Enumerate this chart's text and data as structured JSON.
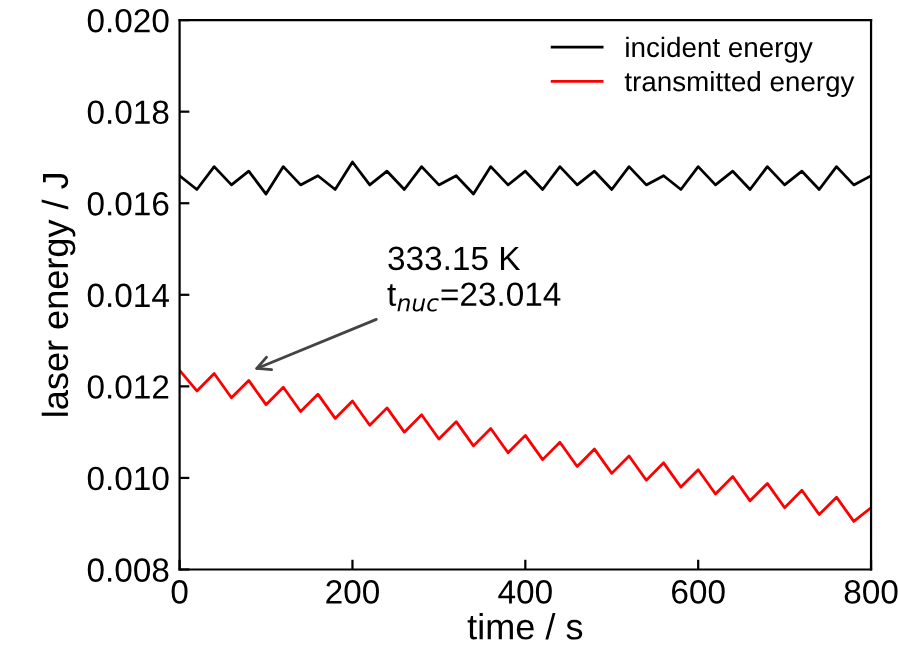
{
  "chart_data": {
    "type": "line",
    "xlabel": "time / s",
    "ylabel": "laser energy / J",
    "x": [
      0,
      20,
      40,
      60,
      80,
      100,
      120,
      140,
      160,
      180,
      200,
      220,
      240,
      260,
      280,
      300,
      320,
      340,
      360,
      380,
      400,
      420,
      440,
      460,
      480,
      500,
      520,
      540,
      560,
      580,
      600,
      620,
      640,
      660,
      680,
      700,
      720,
      740,
      760,
      780,
      800
    ],
    "series": [
      {
        "name": "incident energy",
        "color": "#000000",
        "values": [
          0.0166,
          0.0163,
          0.0168,
          0.0164,
          0.0167,
          0.0162,
          0.0168,
          0.0164,
          0.0166,
          0.0163,
          0.0169,
          0.0164,
          0.0167,
          0.0163,
          0.0168,
          0.0164,
          0.0166,
          0.0162,
          0.0168,
          0.0164,
          0.0167,
          0.0163,
          0.0168,
          0.0164,
          0.0167,
          0.0163,
          0.0168,
          0.0164,
          0.0166,
          0.0163,
          0.0168,
          0.0164,
          0.0167,
          0.0163,
          0.0168,
          0.0164,
          0.0167,
          0.0163,
          0.0168,
          0.0164,
          0.0166
        ]
      },
      {
        "name": "transmitted energy",
        "color": "#ff0000",
        "values": [
          0.01235,
          0.0119,
          0.01228,
          0.01175,
          0.01213,
          0.0116,
          0.01198,
          0.01145,
          0.01183,
          0.0113,
          0.01168,
          0.01115,
          0.01153,
          0.011,
          0.01138,
          0.01085,
          0.01123,
          0.0107,
          0.01108,
          0.01055,
          0.01093,
          0.0104,
          0.01078,
          0.01025,
          0.01063,
          0.0101,
          0.01048,
          0.00995,
          0.01033,
          0.0098,
          0.01018,
          0.00965,
          0.01003,
          0.0095,
          0.00988,
          0.00935,
          0.00973,
          0.0092,
          0.00958,
          0.00905,
          0.00935
        ]
      }
    ],
    "xlim": [
      0,
      800
    ],
    "xticks": [
      0,
      200,
      400,
      600,
      800
    ],
    "ylim": [
      0.008,
      0.02
    ],
    "yticks": [
      0.008,
      {
        "value": 0.01,
        "label": "0.010"
      },
      0.012,
      0.014,
      0.016,
      0.018,
      {
        "value": 0.02,
        "label": "0.020"
      }
    ],
    "annotations": [
      "333.15 K\nt$_{nuc}$=23.014"
    ],
    "legend": "top right",
    "grid": false,
    "marker": "none",
    "line_style": "solid"
  }
}
